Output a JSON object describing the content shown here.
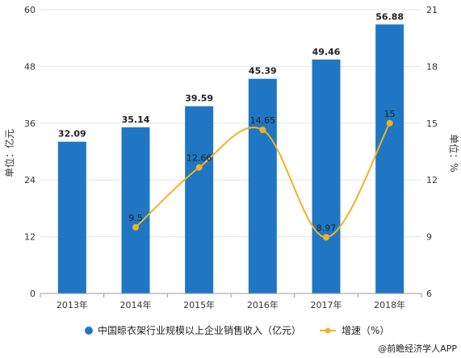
{
  "chart_data": {
    "type": "bar",
    "categories": [
      "2013年",
      "2014年",
      "2015年",
      "2016年",
      "2017年",
      "2018年"
    ],
    "series": [
      {
        "name": "中国晾衣架行业规模以上企业销售收入（亿元）",
        "type": "bar",
        "axis": "left",
        "values": [
          32.09,
          35.14,
          39.59,
          45.39,
          49.46,
          56.88
        ],
        "labels": [
          "32.09",
          "35.14",
          "39.59",
          "45.39",
          "49.46",
          "56.88"
        ],
        "color": "#1f77c4"
      },
      {
        "name": "增速（%）",
        "type": "line",
        "axis": "right",
        "values": [
          null,
          9.5,
          12.66,
          14.65,
          8.97,
          15
        ],
        "labels": [
          "",
          "9.5",
          "12.66",
          "14.65",
          "8.97",
          "15"
        ],
        "color": "#f0b323"
      }
    ],
    "ylabel": "单位：亿元",
    "y2label": "单位：%",
    "ylim": [
      0,
      60
    ],
    "y2lim": [
      6,
      21
    ],
    "yticks": [
      "0",
      "12",
      "24",
      "36",
      "48",
      "60"
    ],
    "y2ticks": [
      "6",
      "9",
      "12",
      "15",
      "18",
      "21"
    ],
    "legend_position": "bottom",
    "grid": true,
    "credit": "@前瞻经济学人APP"
  }
}
